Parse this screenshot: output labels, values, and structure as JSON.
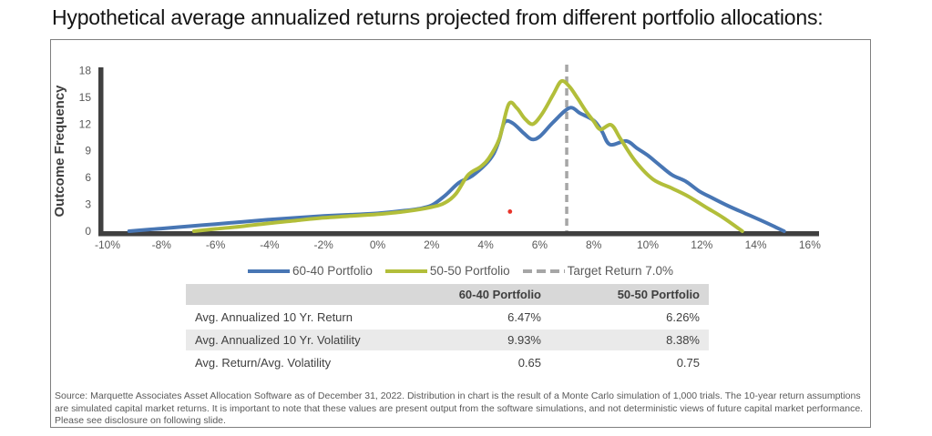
{
  "title": "Hypothetical average annualized returns projected from different portfolio allocations:",
  "chart_data": {
    "type": "line",
    "title": "",
    "xlabel": "",
    "ylabel": "Outcome Frequency",
    "xlim": [
      -10,
      16
    ],
    "ylim": [
      0,
      18
    ],
    "grid": false,
    "legend_position": "bottom",
    "y_ticks": [
      0,
      3,
      6,
      9,
      12,
      15,
      18
    ],
    "x_tick_values": [
      -10,
      -8,
      -6,
      -4,
      -2,
      0,
      2,
      4,
      6,
      8,
      10,
      12,
      14,
      16
    ],
    "x_tick_labels": [
      "-10%",
      "-8%",
      "-6%",
      "-4%",
      "-2%",
      "0%",
      "2%",
      "4%",
      "6%",
      "8%",
      "10%",
      "12%",
      "14%",
      "16%"
    ],
    "series": [
      {
        "name": "60-40 Portfolio",
        "color": "#4876B4",
        "points": [
          [
            -9.2,
            0
          ],
          [
            -8.5,
            0.18
          ],
          [
            -8,
            0.3
          ],
          [
            -7,
            0.55
          ],
          [
            -6,
            0.8
          ],
          [
            -5,
            1.05
          ],
          [
            -4,
            1.3
          ],
          [
            -3,
            1.5
          ],
          [
            -2,
            1.7
          ],
          [
            -1,
            1.85
          ],
          [
            0,
            2.0
          ],
          [
            1,
            2.3
          ],
          [
            1.5,
            2.5
          ],
          [
            2,
            2.9
          ],
          [
            2.5,
            4.0
          ],
          [
            3,
            5.4
          ],
          [
            3.5,
            6.2
          ],
          [
            4,
            7.5
          ],
          [
            4.3,
            8.7
          ],
          [
            4.5,
            10.2
          ],
          [
            4.7,
            12.2
          ],
          [
            5,
            12.1
          ],
          [
            5.4,
            11.0
          ],
          [
            5.7,
            10.3
          ],
          [
            6,
            10.6
          ],
          [
            6.5,
            12.2
          ],
          [
            7.1,
            13.8
          ],
          [
            7.5,
            13.2
          ],
          [
            8,
            12.4
          ],
          [
            8.3,
            11.2
          ],
          [
            8.6,
            9.7
          ],
          [
            9.2,
            10.1
          ],
          [
            9.6,
            9.3
          ],
          [
            10,
            8.5
          ],
          [
            10.4,
            7.5
          ],
          [
            10.9,
            6.3
          ],
          [
            11.4,
            5.6
          ],
          [
            11.9,
            4.5
          ],
          [
            12.4,
            3.7
          ],
          [
            13,
            2.8
          ],
          [
            13.6,
            2.0
          ],
          [
            14.2,
            1.2
          ],
          [
            14.7,
            0.5
          ],
          [
            15.05,
            0
          ]
        ]
      },
      {
        "name": "50-50 Portfolio",
        "color": "#B2BE3A",
        "points": [
          [
            -6.8,
            0
          ],
          [
            -6,
            0.25
          ],
          [
            -5,
            0.55
          ],
          [
            -4,
            0.9
          ],
          [
            -3,
            1.2
          ],
          [
            -2,
            1.5
          ],
          [
            -1,
            1.7
          ],
          [
            0,
            1.9
          ],
          [
            1,
            2.2
          ],
          [
            2,
            2.7
          ],
          [
            2.5,
            3.2
          ],
          [
            2.9,
            4.2
          ],
          [
            3.35,
            6.3
          ],
          [
            3.8,
            7.2
          ],
          [
            4.1,
            8.1
          ],
          [
            4.5,
            10.3
          ],
          [
            4.85,
            14.2
          ],
          [
            5.15,
            13.8
          ],
          [
            5.45,
            12.6
          ],
          [
            5.75,
            12.0
          ],
          [
            6.1,
            13.2
          ],
          [
            6.5,
            15.3
          ],
          [
            6.8,
            16.8
          ],
          [
            7.1,
            16.2
          ],
          [
            7.4,
            14.9
          ],
          [
            7.7,
            13.5
          ],
          [
            8.0,
            12.3
          ],
          [
            8.25,
            11.4
          ],
          [
            8.65,
            11.9
          ],
          [
            9.0,
            10.3
          ],
          [
            9.55,
            7.8
          ],
          [
            10.2,
            5.8
          ],
          [
            10.9,
            4.8
          ],
          [
            11.5,
            3.9
          ],
          [
            12.2,
            2.6
          ],
          [
            12.8,
            1.5
          ],
          [
            13.5,
            0
          ]
        ]
      }
    ],
    "target_line": {
      "label": "Target Return 7.0%",
      "x": 7.0,
      "color": "#A6A6A6",
      "style": "dashed"
    },
    "annotations": [
      {
        "type": "point",
        "name": "red-dot-marker",
        "x": 4.9,
        "y": 2.2,
        "color": "#E8342A"
      }
    ],
    "axis_color": "#404040"
  },
  "table": {
    "columns": [
      "",
      "60-40 Portfolio",
      "50-50 Portfolio"
    ],
    "rows": [
      {
        "label": "Avg. Annualized 10 Yr. Return",
        "values": [
          "6.47%",
          "6.26%"
        ]
      },
      {
        "label": "Avg. Annualized 10 Yr. Volatility",
        "values": [
          "9.93%",
          "8.38%"
        ]
      },
      {
        "label": "Avg. Return/Avg. Volatility",
        "values": [
          "0.65",
          "0.75"
        ]
      }
    ],
    "header_bg": "#D8D8D8",
    "alt_row_bg": "#EAEAEA"
  },
  "footnote": "Source: Marquette Associates Asset Allocation Software as of December 31, 2022. Distribution in chart is the result of a Monte Carlo simulation of 1,000 trials. The 10-year return assumptions are simulated capital market returns. It is important to note that these values are present output from the software simulations, and not deterministic views of future capital market performance. Please see disclosure on following slide."
}
